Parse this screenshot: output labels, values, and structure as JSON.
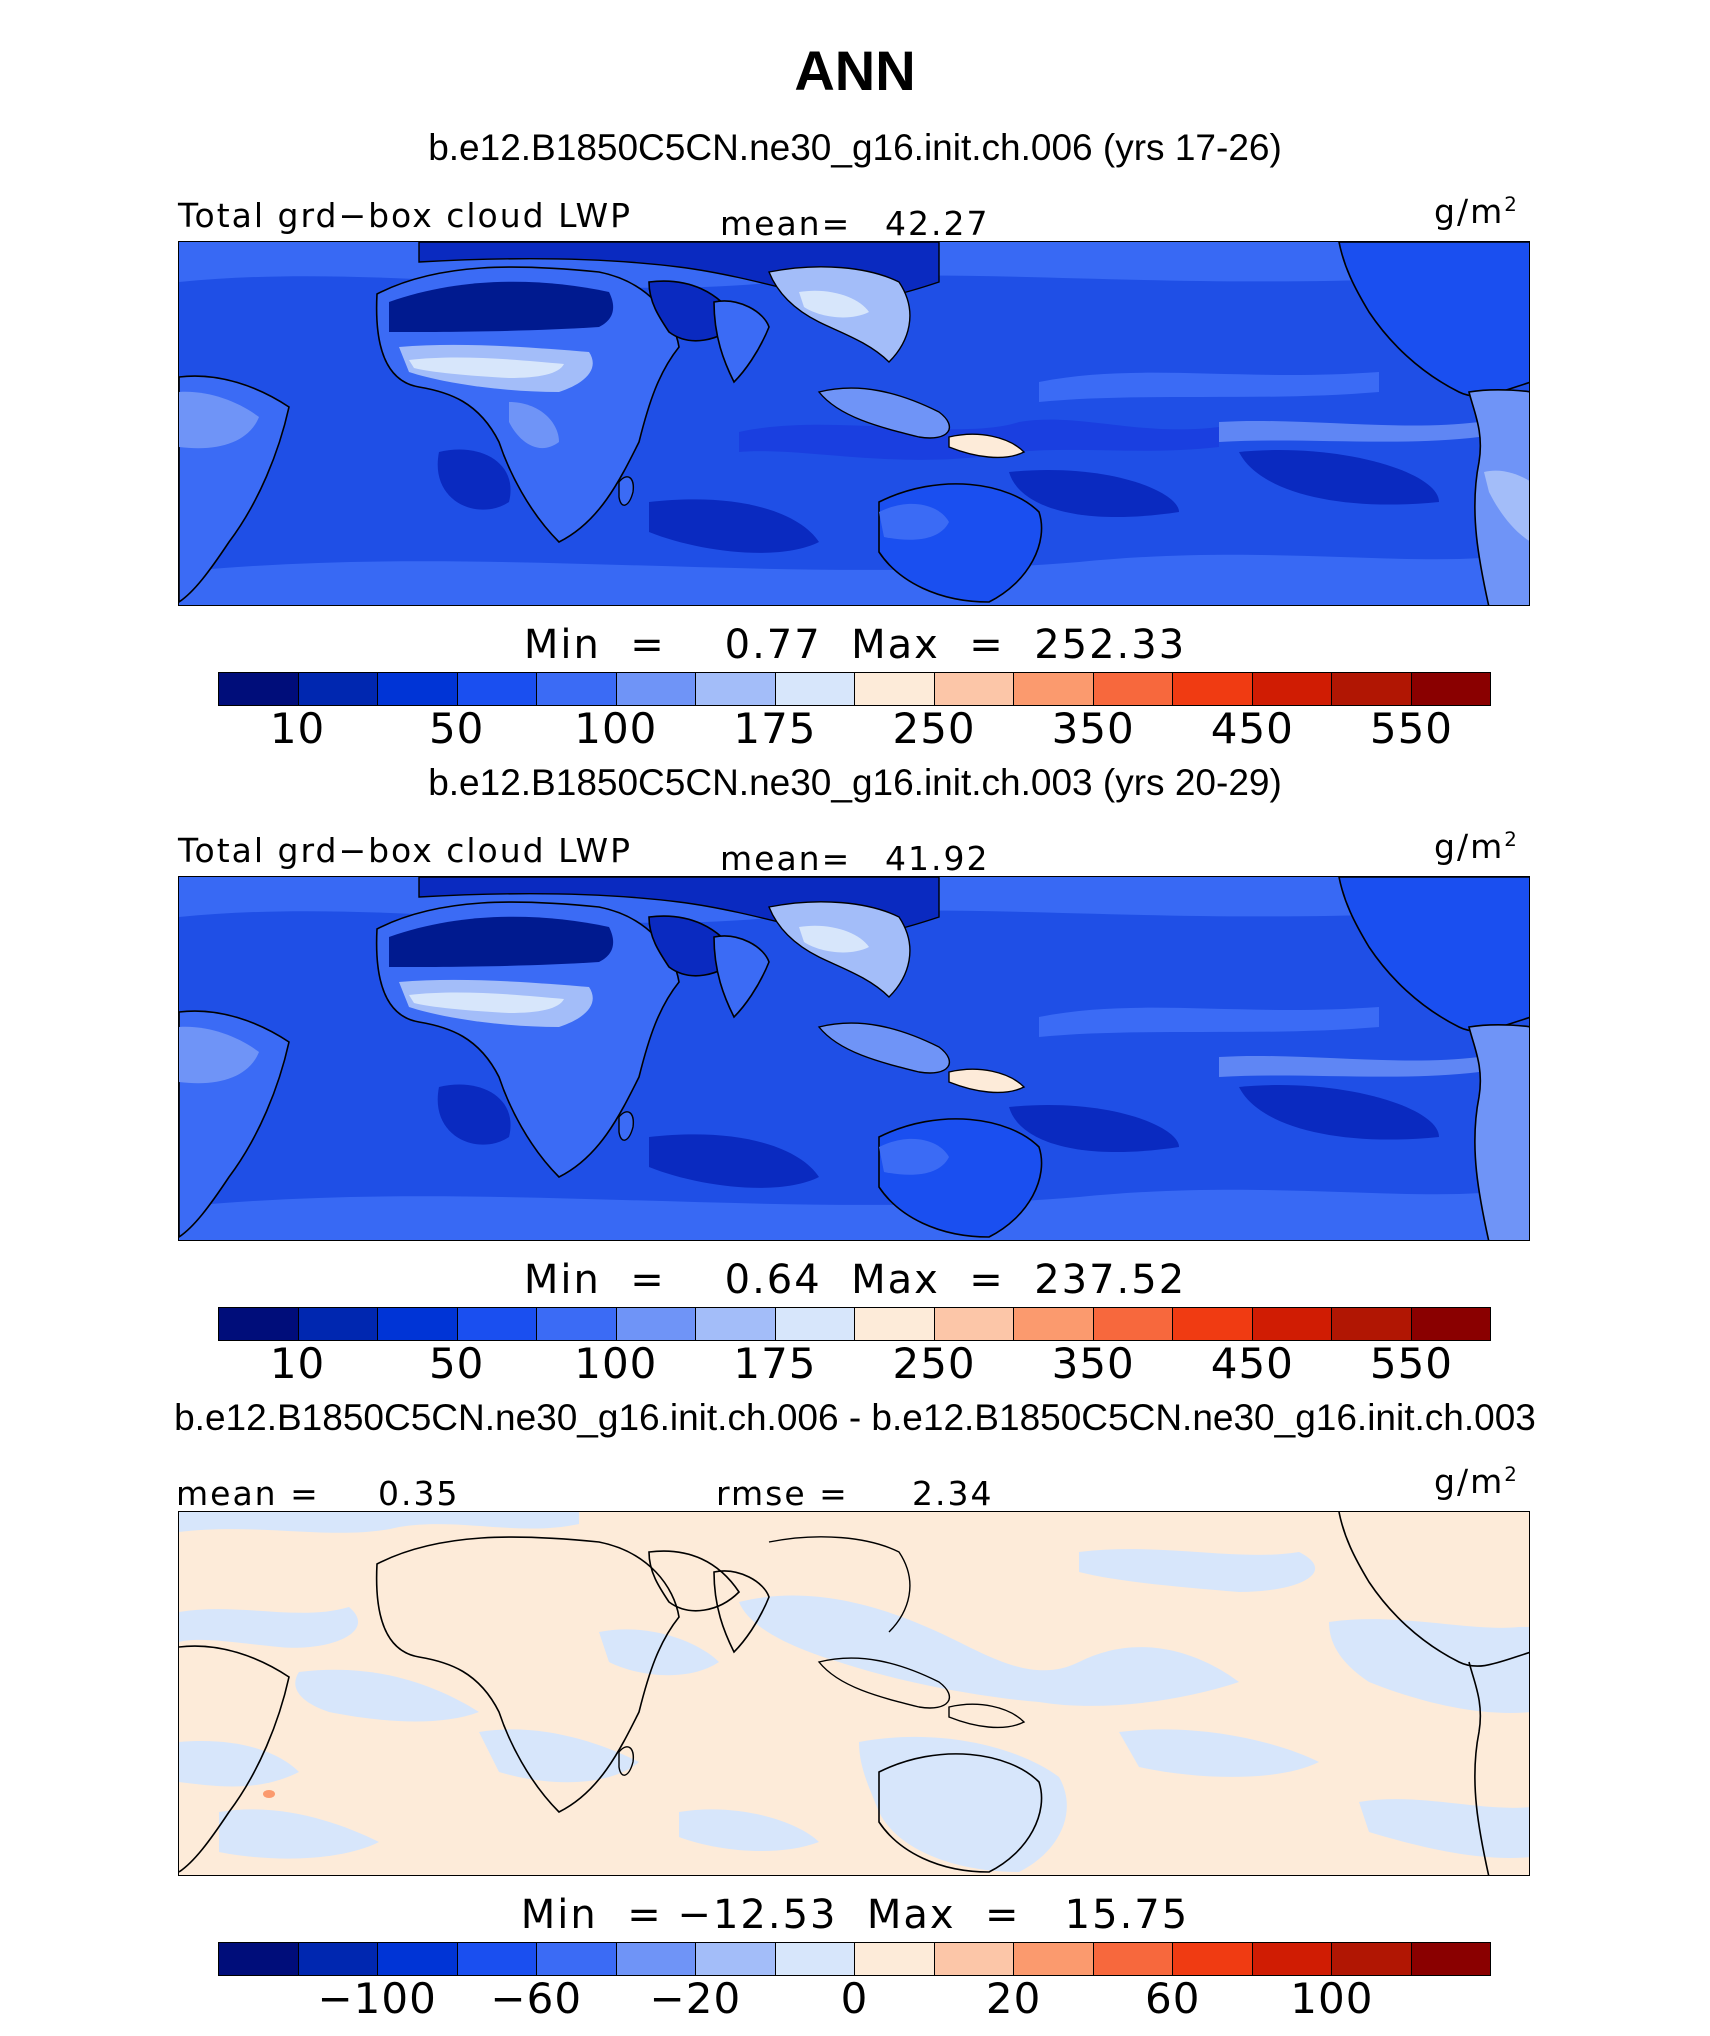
{
  "title": "ANN",
  "units": "g/m",
  "units_exp": "2",
  "palette": [
    "#000d7a",
    "#0027b0",
    "#0034d6",
    "#1a4ff0",
    "#3b6bf5",
    "#6f94f7",
    "#a3bdf9",
    "#d7e6fb",
    "#fdebd9",
    "#fcc6a8",
    "#fb9a6e",
    "#f7683d",
    "#f03b12",
    "#d01c03",
    "#b11603",
    "#8a0000"
  ],
  "panels": [
    {
      "case": "b.e12.B1850C5CN.ne30_g16.init.ch.006 (yrs 17-26)",
      "var": "Total grd−box cloud LWP",
      "stat1_label": "mean=",
      "stat1_value": "42.27",
      "minmax": "Min  =    0.77  Max  =  252.33",
      "ticks": [
        "10",
        "50",
        "100",
        "175",
        "250",
        "350",
        "450",
        "550"
      ]
    },
    {
      "case": "b.e12.B1850C5CN.ne30_g16.init.ch.003 (yrs 20-29)",
      "var": "Total grd−box cloud LWP",
      "stat1_label": "mean=",
      "stat1_value": "41.92",
      "minmax": "Min  =    0.64  Max  =  237.52",
      "ticks": [
        "10",
        "50",
        "100",
        "175",
        "250",
        "350",
        "450",
        "550"
      ]
    },
    {
      "case": "b.e12.B1850C5CN.ne30_g16.init.ch.006 - b.e12.B1850C5CN.ne30_g16.init.ch.003",
      "stat1_label": "mean =",
      "stat1_value": "0.35",
      "stat2_label": "rmse =",
      "stat2_value": "2.34",
      "minmax": "Min  = −12.53  Max  =   15.75",
      "ticks": [
        "−100",
        "−60",
        "−20",
        "0",
        "20",
        "60",
        "100"
      ]
    }
  ]
}
